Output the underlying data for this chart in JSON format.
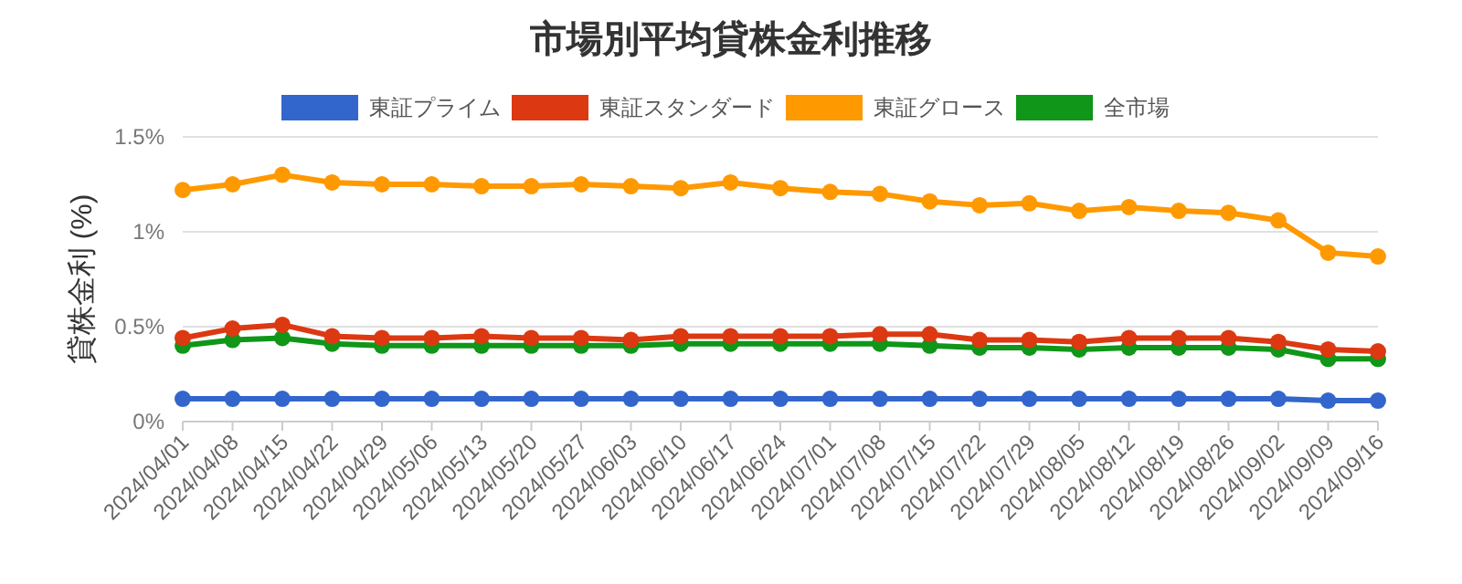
{
  "chart_data": {
    "type": "line",
    "title": "市場別平均貸株金利推移",
    "ylabel": "貸株金利 (%)",
    "categories": [
      "2024/04/01",
      "2024/04/08",
      "2024/04/15",
      "2024/04/22",
      "2024/04/29",
      "2024/05/06",
      "2024/05/13",
      "2024/05/20",
      "2024/05/27",
      "2024/06/03",
      "2024/06/10",
      "2024/06/17",
      "2024/06/24",
      "2024/07/01",
      "2024/07/08",
      "2024/07/15",
      "2024/07/22",
      "2024/07/29",
      "2024/08/05",
      "2024/08/12",
      "2024/08/19",
      "2024/08/26",
      "2024/09/02",
      "2024/09/09",
      "2024/09/16"
    ],
    "series": [
      {
        "name": "東証プライム",
        "color": "#3366cc",
        "values": [
          0.12,
          0.12,
          0.12,
          0.12,
          0.12,
          0.12,
          0.12,
          0.12,
          0.12,
          0.12,
          0.12,
          0.12,
          0.12,
          0.12,
          0.12,
          0.12,
          0.12,
          0.12,
          0.12,
          0.12,
          0.12,
          0.12,
          0.12,
          0.11,
          0.11
        ]
      },
      {
        "name": "東証スタンダード",
        "color": "#dc3912",
        "values": [
          0.44,
          0.49,
          0.51,
          0.45,
          0.44,
          0.44,
          0.45,
          0.44,
          0.44,
          0.43,
          0.45,
          0.45,
          0.45,
          0.45,
          0.46,
          0.46,
          0.43,
          0.43,
          0.42,
          0.44,
          0.44,
          0.44,
          0.42,
          0.38,
          0.37
        ]
      },
      {
        "name": "東証グロース",
        "color": "#ff9900",
        "values": [
          1.22,
          1.25,
          1.3,
          1.26,
          1.25,
          1.25,
          1.24,
          1.24,
          1.25,
          1.24,
          1.23,
          1.26,
          1.23,
          1.21,
          1.2,
          1.16,
          1.14,
          1.15,
          1.11,
          1.13,
          1.11,
          1.1,
          1.06,
          0.89,
          0.87
        ]
      },
      {
        "name": "全市場",
        "color": "#109618",
        "values": [
          0.4,
          0.43,
          0.44,
          0.41,
          0.4,
          0.4,
          0.4,
          0.4,
          0.4,
          0.4,
          0.41,
          0.41,
          0.41,
          0.41,
          0.41,
          0.4,
          0.39,
          0.39,
          0.38,
          0.39,
          0.39,
          0.39,
          0.38,
          0.33,
          0.33
        ]
      }
    ],
    "ylim": [
      0,
      1.5
    ],
    "yticks": [
      {
        "value": 0,
        "label": "0%"
      },
      {
        "value": 0.5,
        "label": "0.5%"
      },
      {
        "value": 1,
        "label": "1%"
      },
      {
        "value": 1.5,
        "label": "1.5%"
      }
    ],
    "grid": "y",
    "legend": "top",
    "marker": "circle"
  }
}
